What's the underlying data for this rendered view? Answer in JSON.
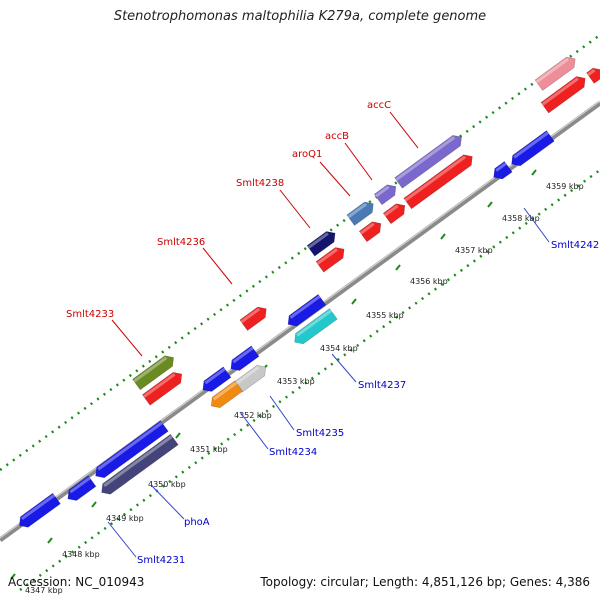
{
  "title": "Stenotrophomonas maltophilia K279a, complete genome",
  "accession_text": "Accession: NC_010943",
  "summary_text": "Topology: circular; Length: 4,851,126 bp; Genes: 4,386",
  "colors": {
    "backbone": "#9a9a9a",
    "ticks": "#1e8a1e",
    "label_forward": "#cc0000",
    "label_reverse": "#0000cc",
    "leader": "#3344cc"
  },
  "ticks": [
    {
      "label": "4347 kbp"
    },
    {
      "label": "4348 kbp"
    },
    {
      "label": "4349 kbp"
    },
    {
      "label": "4350 kbp"
    },
    {
      "label": "4351 kbp"
    },
    {
      "label": "4352 kbp"
    },
    {
      "label": "4353 kbp"
    },
    {
      "label": "4354 kbp"
    },
    {
      "label": "4355 kbp"
    },
    {
      "label": "4356 kbp"
    },
    {
      "label": "4357 kbp"
    },
    {
      "label": "4358 kbp"
    },
    {
      "label": "4359 kbp"
    }
  ],
  "gene_labels": [
    {
      "text": "accC",
      "strand": "forward"
    },
    {
      "text": "accB",
      "strand": "forward"
    },
    {
      "text": "aroQ1",
      "strand": "forward"
    },
    {
      "text": "Smlt4238",
      "strand": "forward"
    },
    {
      "text": "Smlt4236",
      "strand": "forward"
    },
    {
      "text": "Smlt4233",
      "strand": "forward"
    },
    {
      "text": "Smlt4242",
      "strand": "reverse"
    },
    {
      "text": "Smlt4237",
      "strand": "reverse"
    },
    {
      "text": "Smlt4235",
      "strand": "reverse"
    },
    {
      "text": "Smlt4234",
      "strand": "reverse"
    },
    {
      "text": "phoA",
      "strand": "reverse"
    },
    {
      "text": "Smlt4231",
      "strand": "reverse"
    }
  ]
}
